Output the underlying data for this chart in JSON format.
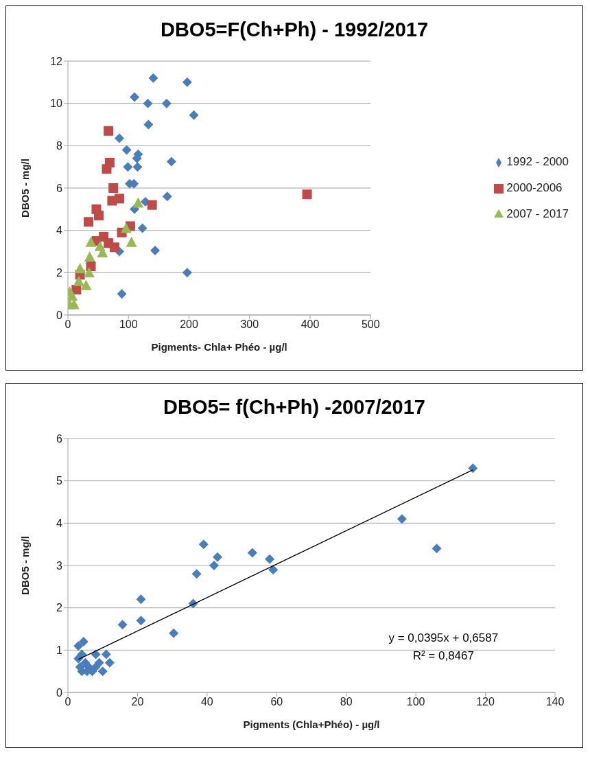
{
  "chart_data": [
    {
      "type": "scatter",
      "title": "DBO5=F(Ch+Ph) - 1992/2017",
      "xlabel": "Pigments- Chla+ Phéo - µg/l",
      "ylabel": "DBO5 - mg/l",
      "xlim": [
        0,
        500
      ],
      "xticks": [
        0,
        100,
        200,
        300,
        400,
        500
      ],
      "ylim": [
        0,
        12
      ],
      "yticks": [
        0,
        2,
        4,
        6,
        8,
        10,
        12
      ],
      "grid": "y",
      "legend": "right",
      "series": [
        {
          "name": "1992 - 2000",
          "color": "#4a7ebb",
          "marker": "diamond",
          "x": [
            141,
            197,
            110,
            132,
            163,
            208,
            133,
            85,
            97,
            116,
            114,
            99,
            115,
            171,
            102,
            109,
            164,
            128,
            110,
            123,
            144,
            85,
            89,
            197
          ],
          "values": [
            11.2,
            11.0,
            10.3,
            10.0,
            10.0,
            9.45,
            9.0,
            8.35,
            7.8,
            7.6,
            7.4,
            7.0,
            7.0,
            7.25,
            6.2,
            6.2,
            5.6,
            5.35,
            5.0,
            4.1,
            3.05,
            3.0,
            1.0,
            2.0
          ]
        },
        {
          "name": "2000-2006",
          "color": "#be4b48",
          "marker": "square",
          "x": [
            67,
            69,
            64,
            75,
            73,
            85,
            139,
            47,
            51,
            34,
            103,
            89,
            59,
            47,
            67,
            77,
            38,
            20,
            14,
            395
          ],
          "values": [
            8.7,
            7.2,
            6.9,
            6.0,
            5.4,
            5.5,
            5.2,
            5.0,
            4.7,
            4.4,
            4.2,
            3.9,
            3.7,
            3.5,
            3.4,
            3.2,
            2.3,
            1.9,
            1.2,
            5.7
          ]
        },
        {
          "name": "2007 - 2017",
          "color": "#98b954",
          "marker": "triangle",
          "x": [
            116,
            96,
            105,
            38,
            53,
            57,
            36,
            20,
            35,
            30,
            18,
            3,
            7,
            3,
            10
          ],
          "values": [
            5.3,
            4.1,
            3.45,
            3.45,
            3.25,
            2.95,
            2.75,
            2.2,
            2.0,
            1.4,
            1.6,
            1.1,
            0.9,
            0.5,
            0.5
          ]
        }
      ]
    },
    {
      "type": "scatter",
      "title": "DBO5= f(Ch+Ph) -2007/2017",
      "xlabel": "Pigments  (Chla+Phéo) - µg/l",
      "ylabel": "DBO5 - mg/l",
      "xlim": [
        0,
        140
      ],
      "xticks": [
        0,
        20,
        40,
        60,
        80,
        100,
        120,
        140
      ],
      "ylim": [
        0,
        6
      ],
      "yticks": [
        0,
        1,
        2,
        3,
        4,
        5,
        6
      ],
      "grid": "y",
      "annotations": [
        "y = 0,0395x + 0,6587",
        "R² = 0,8467"
      ],
      "series": [
        {
          "color": "#4a7ebb",
          "marker": "diamond",
          "x": [
            116.4,
            96,
            106,
            39,
            43,
            42,
            37,
            53,
            58,
            59,
            36,
            21,
            21,
            15.7,
            30.4,
            3,
            4.5,
            3,
            3.5,
            4,
            5,
            5.5,
            6,
            7,
            8,
            8,
            9,
            10,
            11,
            12,
            4
          ],
          "values": [
            5.3,
            4.1,
            3.4,
            3.5,
            3.2,
            3.0,
            2.8,
            3.3,
            3.15,
            2.9,
            2.1,
            2.2,
            1.7,
            1.6,
            1.4,
            1.1,
            1.2,
            0.8,
            0.6,
            0.5,
            0.7,
            0.5,
            0.6,
            0.5,
            0.9,
            0.6,
            0.7,
            0.5,
            0.9,
            0.7,
            0.9
          ]
        },
        {
          "type": "line",
          "color": "#000000",
          "marker": "none",
          "x": [
            3,
            116.4
          ],
          "values": [
            0.78,
            5.26
          ]
        }
      ]
    }
  ]
}
